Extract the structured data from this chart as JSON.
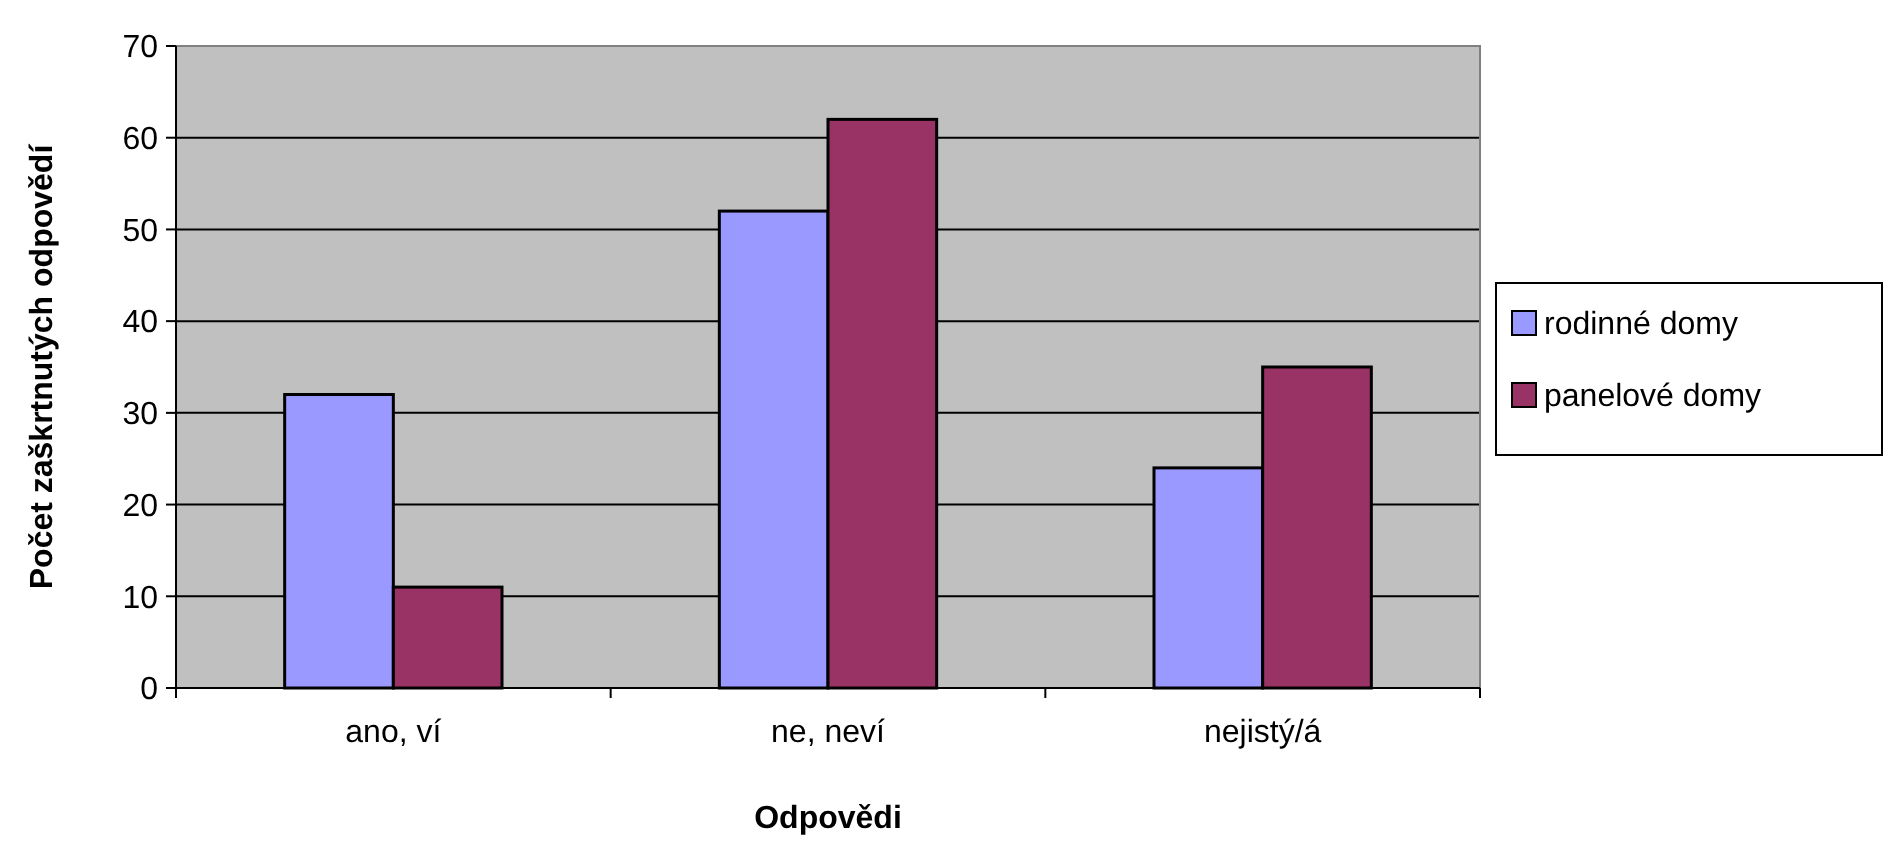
{
  "chart_data": {
    "type": "bar",
    "xlabel": "Odpovědi",
    "ylabel": "Počet zaškrtnutých odpovědí",
    "categories": [
      "ano, ví",
      "ne, neví",
      "nejistý/á"
    ],
    "series": [
      {
        "name": "rodinné domy",
        "color": "#9999ff",
        "values": [
          32,
          52,
          24
        ]
      },
      {
        "name": "panelové domy",
        "color": "#993366",
        "values": [
          11,
          62,
          35
        ]
      }
    ],
    "ylim": [
      0,
      70
    ],
    "yticks": [
      0,
      10,
      20,
      30,
      40,
      50,
      60,
      70
    ],
    "grid": "y",
    "legend": "right"
  }
}
